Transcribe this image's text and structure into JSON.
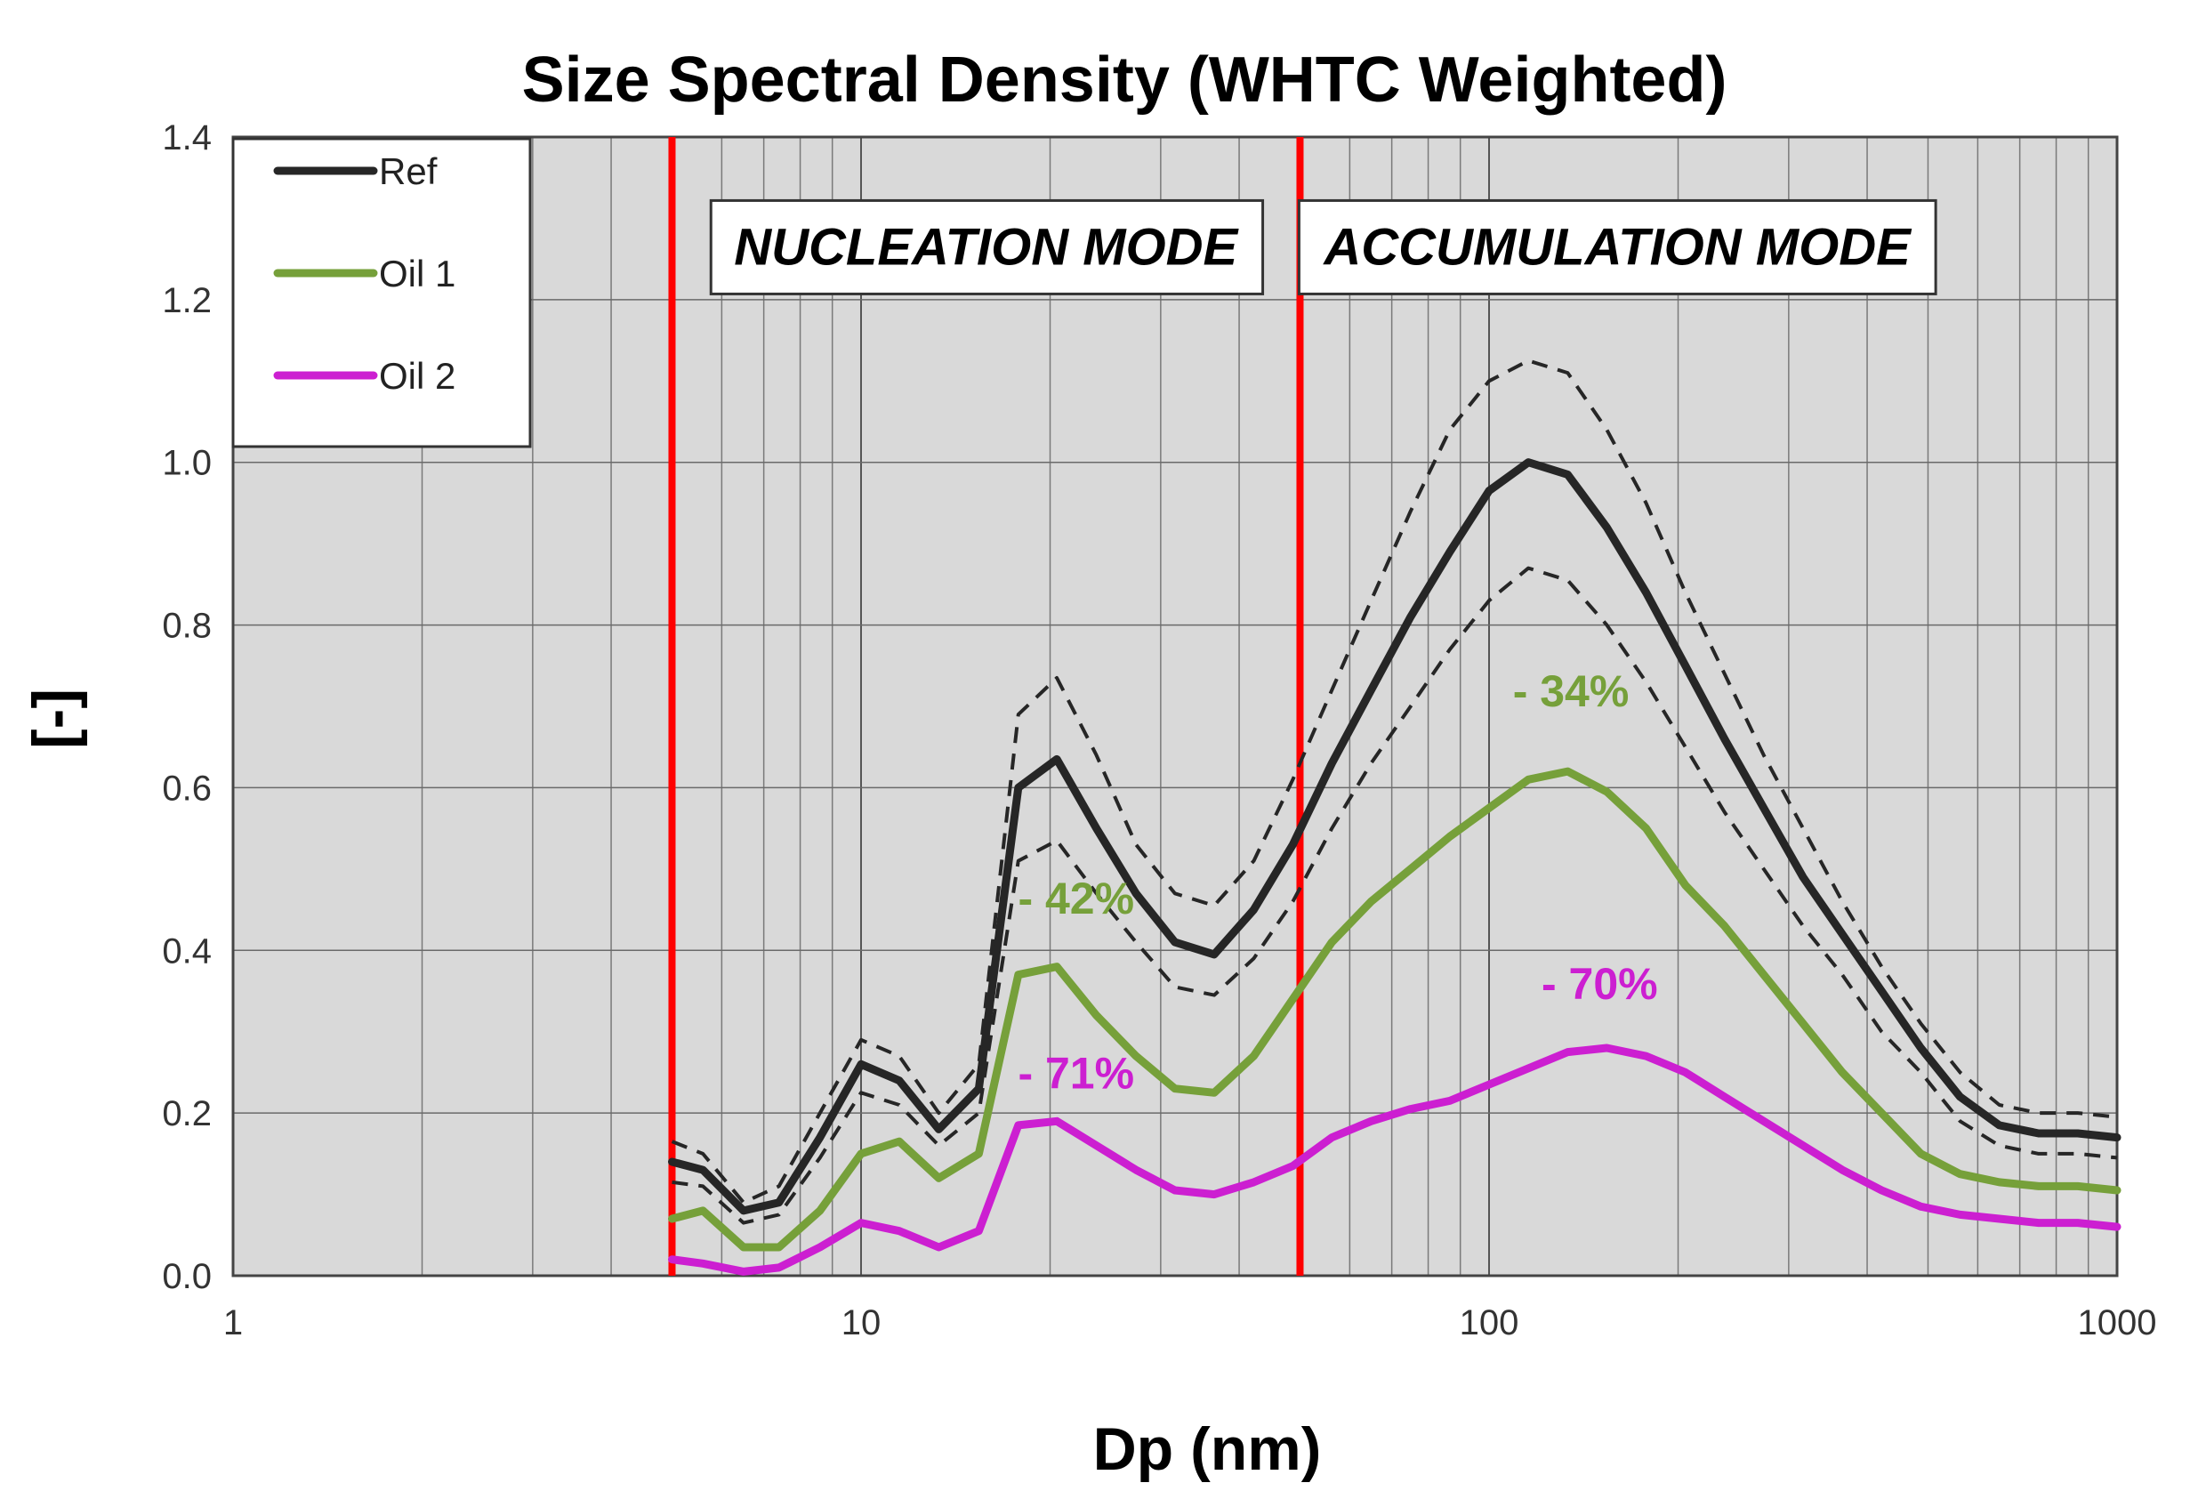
{
  "chart_data": {
    "type": "line",
    "title": "Size Spectral Density  (WHTC Weighted)",
    "xlabel": "Dp (nm)",
    "ylabel": "[-]",
    "xscale": "log",
    "xlim": [
      1,
      1000
    ],
    "ylim": [
      0,
      1.4
    ],
    "x_ticks": [
      1,
      10,
      100,
      1000
    ],
    "x_tick_labels": [
      "1",
      "10",
      "100",
      "1000"
    ],
    "y_ticks": [
      0,
      0.2,
      0.4,
      0.6,
      0.8,
      1.0,
      1.2,
      1.4
    ],
    "y_tick_labels": [
      "0.0",
      "0.2",
      "0.4",
      "0.6",
      "0.8",
      "1.0",
      "1.2",
      "1.4"
    ],
    "grid": true,
    "background": "#d9d9d9",
    "legend_position": "top-left",
    "x": [
      5.0,
      5.6,
      6.5,
      7.4,
      8.6,
      10.0,
      11.5,
      13.3,
      15.4,
      17.8,
      20.5,
      23.7,
      27.4,
      31.6,
      36.5,
      42.2,
      48.7,
      56.2,
      64.9,
      75.0,
      86.6,
      100,
      115.5,
      133.4,
      154,
      177.8,
      205.4,
      237.1,
      273.8,
      316.2,
      365.2,
      421.7,
      487,
      562.3,
      649.4,
      749.9,
      866,
      1000
    ],
    "series": [
      {
        "name": "Ref",
        "color": "#262626",
        "legend": true,
        "values": [
          0.14,
          0.13,
          0.08,
          0.09,
          0.17,
          0.26,
          0.24,
          0.18,
          0.23,
          0.6,
          0.635,
          0.55,
          0.47,
          0.41,
          0.395,
          0.45,
          0.53,
          0.63,
          0.72,
          0.81,
          0.89,
          0.965,
          1.0,
          0.985,
          0.92,
          0.84,
          0.75,
          0.66,
          0.575,
          0.49,
          0.42,
          0.35,
          0.28,
          0.22,
          0.185,
          0.175,
          0.175,
          0.17
        ]
      },
      {
        "name": "Ref upper bound",
        "color": "#262626",
        "dashed": true,
        "legend": false,
        "values": [
          0.165,
          0.15,
          0.09,
          0.11,
          0.2,
          0.29,
          0.27,
          0.2,
          0.26,
          0.69,
          0.735,
          0.64,
          0.53,
          0.47,
          0.455,
          0.51,
          0.61,
          0.72,
          0.83,
          0.94,
          1.04,
          1.1,
          1.125,
          1.11,
          1.04,
          0.95,
          0.84,
          0.74,
          0.64,
          0.55,
          0.46,
          0.38,
          0.31,
          0.25,
          0.21,
          0.2,
          0.2,
          0.195
        ]
      },
      {
        "name": "Ref lower bound",
        "color": "#262626",
        "dashed": true,
        "legend": false,
        "values": [
          0.115,
          0.11,
          0.065,
          0.075,
          0.145,
          0.225,
          0.21,
          0.16,
          0.2,
          0.51,
          0.535,
          0.47,
          0.41,
          0.355,
          0.345,
          0.39,
          0.46,
          0.55,
          0.63,
          0.7,
          0.77,
          0.83,
          0.87,
          0.855,
          0.8,
          0.73,
          0.65,
          0.57,
          0.5,
          0.43,
          0.37,
          0.3,
          0.25,
          0.19,
          0.16,
          0.15,
          0.15,
          0.145
        ]
      },
      {
        "name": "Oil 1",
        "color": "#76a03a",
        "legend": true,
        "values": [
          0.07,
          0.08,
          0.035,
          0.035,
          0.08,
          0.15,
          0.165,
          0.12,
          0.15,
          0.37,
          0.38,
          0.32,
          0.27,
          0.23,
          0.225,
          0.27,
          0.34,
          0.41,
          0.46,
          0.5,
          0.54,
          0.575,
          0.61,
          0.62,
          0.595,
          0.55,
          0.48,
          0.43,
          0.37,
          0.31,
          0.25,
          0.2,
          0.15,
          0.125,
          0.115,
          0.11,
          0.11,
          0.105
        ]
      },
      {
        "name": "Oil 2",
        "color": "#cc1fd1",
        "legend": true,
        "values": [
          0.02,
          0.015,
          0.005,
          0.01,
          0.035,
          0.065,
          0.055,
          0.035,
          0.055,
          0.185,
          0.19,
          0.16,
          0.13,
          0.105,
          0.1,
          0.115,
          0.135,
          0.17,
          0.19,
          0.205,
          0.215,
          0.235,
          0.255,
          0.275,
          0.28,
          0.27,
          0.25,
          0.22,
          0.19,
          0.16,
          0.13,
          0.105,
          0.085,
          0.075,
          0.07,
          0.065,
          0.065,
          0.06
        ]
      }
    ],
    "vertical_lines": [
      {
        "x": 5,
        "color": "#ff0000"
      },
      {
        "x": 50,
        "color": "#ff0000"
      }
    ],
    "mode_labels": [
      {
        "text": "NUCLEATION MODE",
        "x_center": 15.8,
        "y": 1.265
      },
      {
        "text": "ACCUMULATION MODE",
        "x_center": 160,
        "y": 1.265
      }
    ],
    "annotations": [
      {
        "text": "- 42%",
        "x": 22,
        "y": 0.445,
        "color": "#76a03a"
      },
      {
        "text": "- 71%",
        "x": 22,
        "y": 0.23,
        "color": "#cc1fd1"
      },
      {
        "text": "- 34%",
        "x": 135,
        "y": 0.7,
        "color": "#76a03a"
      },
      {
        "text": "- 70%",
        "x": 150,
        "y": 0.34,
        "color": "#cc1fd1"
      }
    ]
  }
}
